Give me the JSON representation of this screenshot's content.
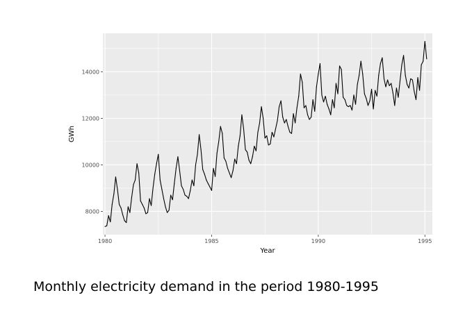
{
  "caption": "Monthly electricity demand in the period 1980-1995",
  "colors": {
    "panel": "#ebebeb",
    "grid": "#ffffff",
    "line": "#000000",
    "tick": "#4d4d4d"
  },
  "chart_data": {
    "type": "line",
    "title": "",
    "xlabel": "Year",
    "ylabel": "GWh",
    "xlim": [
      1979.9,
      1995.35
    ],
    "ylim": [
      7000,
      15650
    ],
    "x_ticks": [
      1980,
      1985,
      1990,
      1995
    ],
    "y_ticks": [
      8000,
      10000,
      12000,
      14000
    ],
    "x_tick_labels": [
      "1980",
      "1985",
      "1990",
      "1995"
    ],
    "y_tick_labels": [
      "8000",
      "10000",
      "12000",
      "14000"
    ],
    "grid": true,
    "legend": "none",
    "series": [
      {
        "start": 1980.0,
        "frequency": 12,
        "values": [
          7350,
          7380,
          7820,
          7550,
          8300,
          8750,
          9480,
          8950,
          8300,
          8150,
          7850,
          7600,
          7520,
          8200,
          7950,
          8600,
          9150,
          9350,
          10050,
          9650,
          8450,
          8300,
          8150,
          7900,
          7950,
          8550,
          8250,
          9000,
          9600,
          10050,
          10450,
          9350,
          8950,
          8550,
          8200,
          7950,
          8050,
          8700,
          8500,
          9200,
          9850,
          10350,
          9750,
          9100,
          8950,
          8700,
          8650,
          8550,
          8900,
          9350,
          9100,
          10000,
          10450,
          11300,
          10650,
          9800,
          9600,
          9350,
          9200,
          9050,
          8900,
          9850,
          9500,
          10500,
          11000,
          11650,
          11350,
          10300,
          10150,
          9850,
          9650,
          9450,
          9750,
          10250,
          10050,
          10800,
          11250,
          12150,
          11550,
          10650,
          10550,
          10200,
          10050,
          10350,
          10800,
          10600,
          11400,
          11800,
          12500,
          12000,
          11150,
          11250,
          10850,
          10900,
          11400,
          11200,
          11550,
          11900,
          12500,
          12750,
          12050,
          11800,
          11950,
          11650,
          11400,
          11350,
          12200,
          11800,
          12450,
          12950,
          13900,
          13550,
          12450,
          12550,
          12150,
          11950,
          12050,
          12800,
          12300,
          13350,
          13900,
          14350,
          13000,
          12700,
          12950,
          12600,
          12400,
          12150,
          12800,
          12450,
          13500,
          13050,
          14250,
          14100,
          12900,
          12800,
          12550,
          12500,
          12550,
          12350,
          13000,
          12600,
          13450,
          13850,
          14450,
          13900,
          13050,
          12850,
          12550,
          12750,
          13250,
          12400,
          13200,
          12950,
          13850,
          14350,
          14600,
          13700,
          13350,
          13650,
          13400,
          13500,
          13100,
          12550,
          13300,
          12900,
          13600,
          14300,
          14700,
          13850,
          13450,
          13300,
          13700,
          13650,
          13150,
          12800,
          13750,
          13200,
          14300,
          14450,
          15300,
          14550
        ]
      }
    ]
  }
}
